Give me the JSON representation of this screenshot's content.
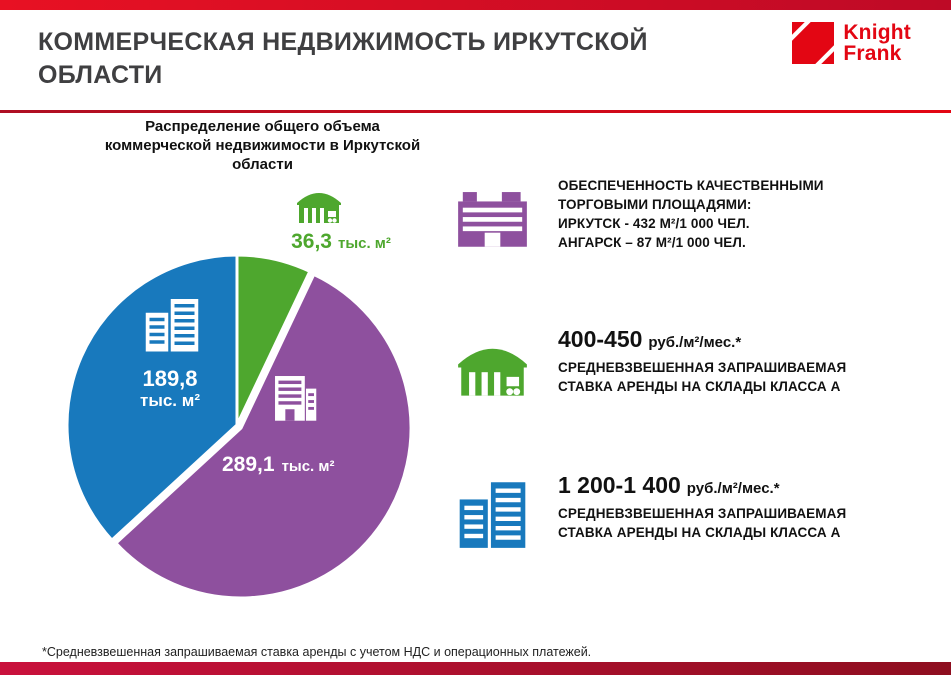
{
  "header": {
    "title": "КОММЕРЧЕСКАЯ НЕДВИЖИМОСТЬ ИРКУТСКОЙ ОБЛАСТИ",
    "logo_line1": "Knight",
    "logo_line2": "Frank"
  },
  "colors": {
    "brand_red": "#E30613",
    "green": "#4EA72E",
    "blue": "#1879BD",
    "purple": "#8E509E",
    "title_gray": "#3F3F41"
  },
  "chart_data": {
    "type": "pie",
    "title": "Распределение общего объема коммерческой недвижимости в Иркутской области",
    "unit": "тыс. м²",
    "legend": "none",
    "start_angle": 0,
    "slices": [
      {
        "icon": "warehouse",
        "value": 36.3,
        "value_display": "36,3",
        "color": "#4EA72E",
        "explode": 0,
        "label_position": "outside-top"
      },
      {
        "icon": "office-building",
        "value": 289.1,
        "value_display": "289,1",
        "color": "#8E509E",
        "explode": 5,
        "label_position": "inside"
      },
      {
        "icon": "city-buildings",
        "value": 189.8,
        "value_display": "189,8",
        "color": "#1879BD",
        "explode": 0,
        "label_position": "inside"
      }
    ]
  },
  "info_blocks": [
    {
      "icon": "shopping-mall",
      "color": "#8E509E",
      "text": "ОБЕСПЕЧЕННОСТЬ КАЧЕСТВЕННЫМИ\nТОРГОВЫМИ ПЛОЩАДЯМИ:\nИРКУТСК  - 432 М²/1 000 ЧЕЛ.\nАНГАРСК – 87 М²/1 000 ЧЕЛ."
    },
    {
      "icon": "warehouse",
      "color": "#4EA72E",
      "big": "400-450",
      "rest": "руб./м²/мес.*",
      "desc": "СРЕДНЕВЗВЕШЕННАЯ ЗАПРАШИВАЕМАЯ\nСТАВКА АРЕНДЫ НА СКЛАДЫ КЛАССА А"
    },
    {
      "icon": "city-buildings",
      "color": "#1879BD",
      "big": "1 200-1 400",
      "rest": "руб./м²/мес.*",
      "desc": "СРЕДНЕВЗВЕШЕННАЯ ЗАПРАШИВАЕМАЯ\nСТАВКА АРЕНДЫ НА СКЛАДЫ КЛАССА А"
    }
  ],
  "footnote": "*Средневзвешенная запрашиваемая ставка аренды с учетом НДС  и операционных платежей."
}
